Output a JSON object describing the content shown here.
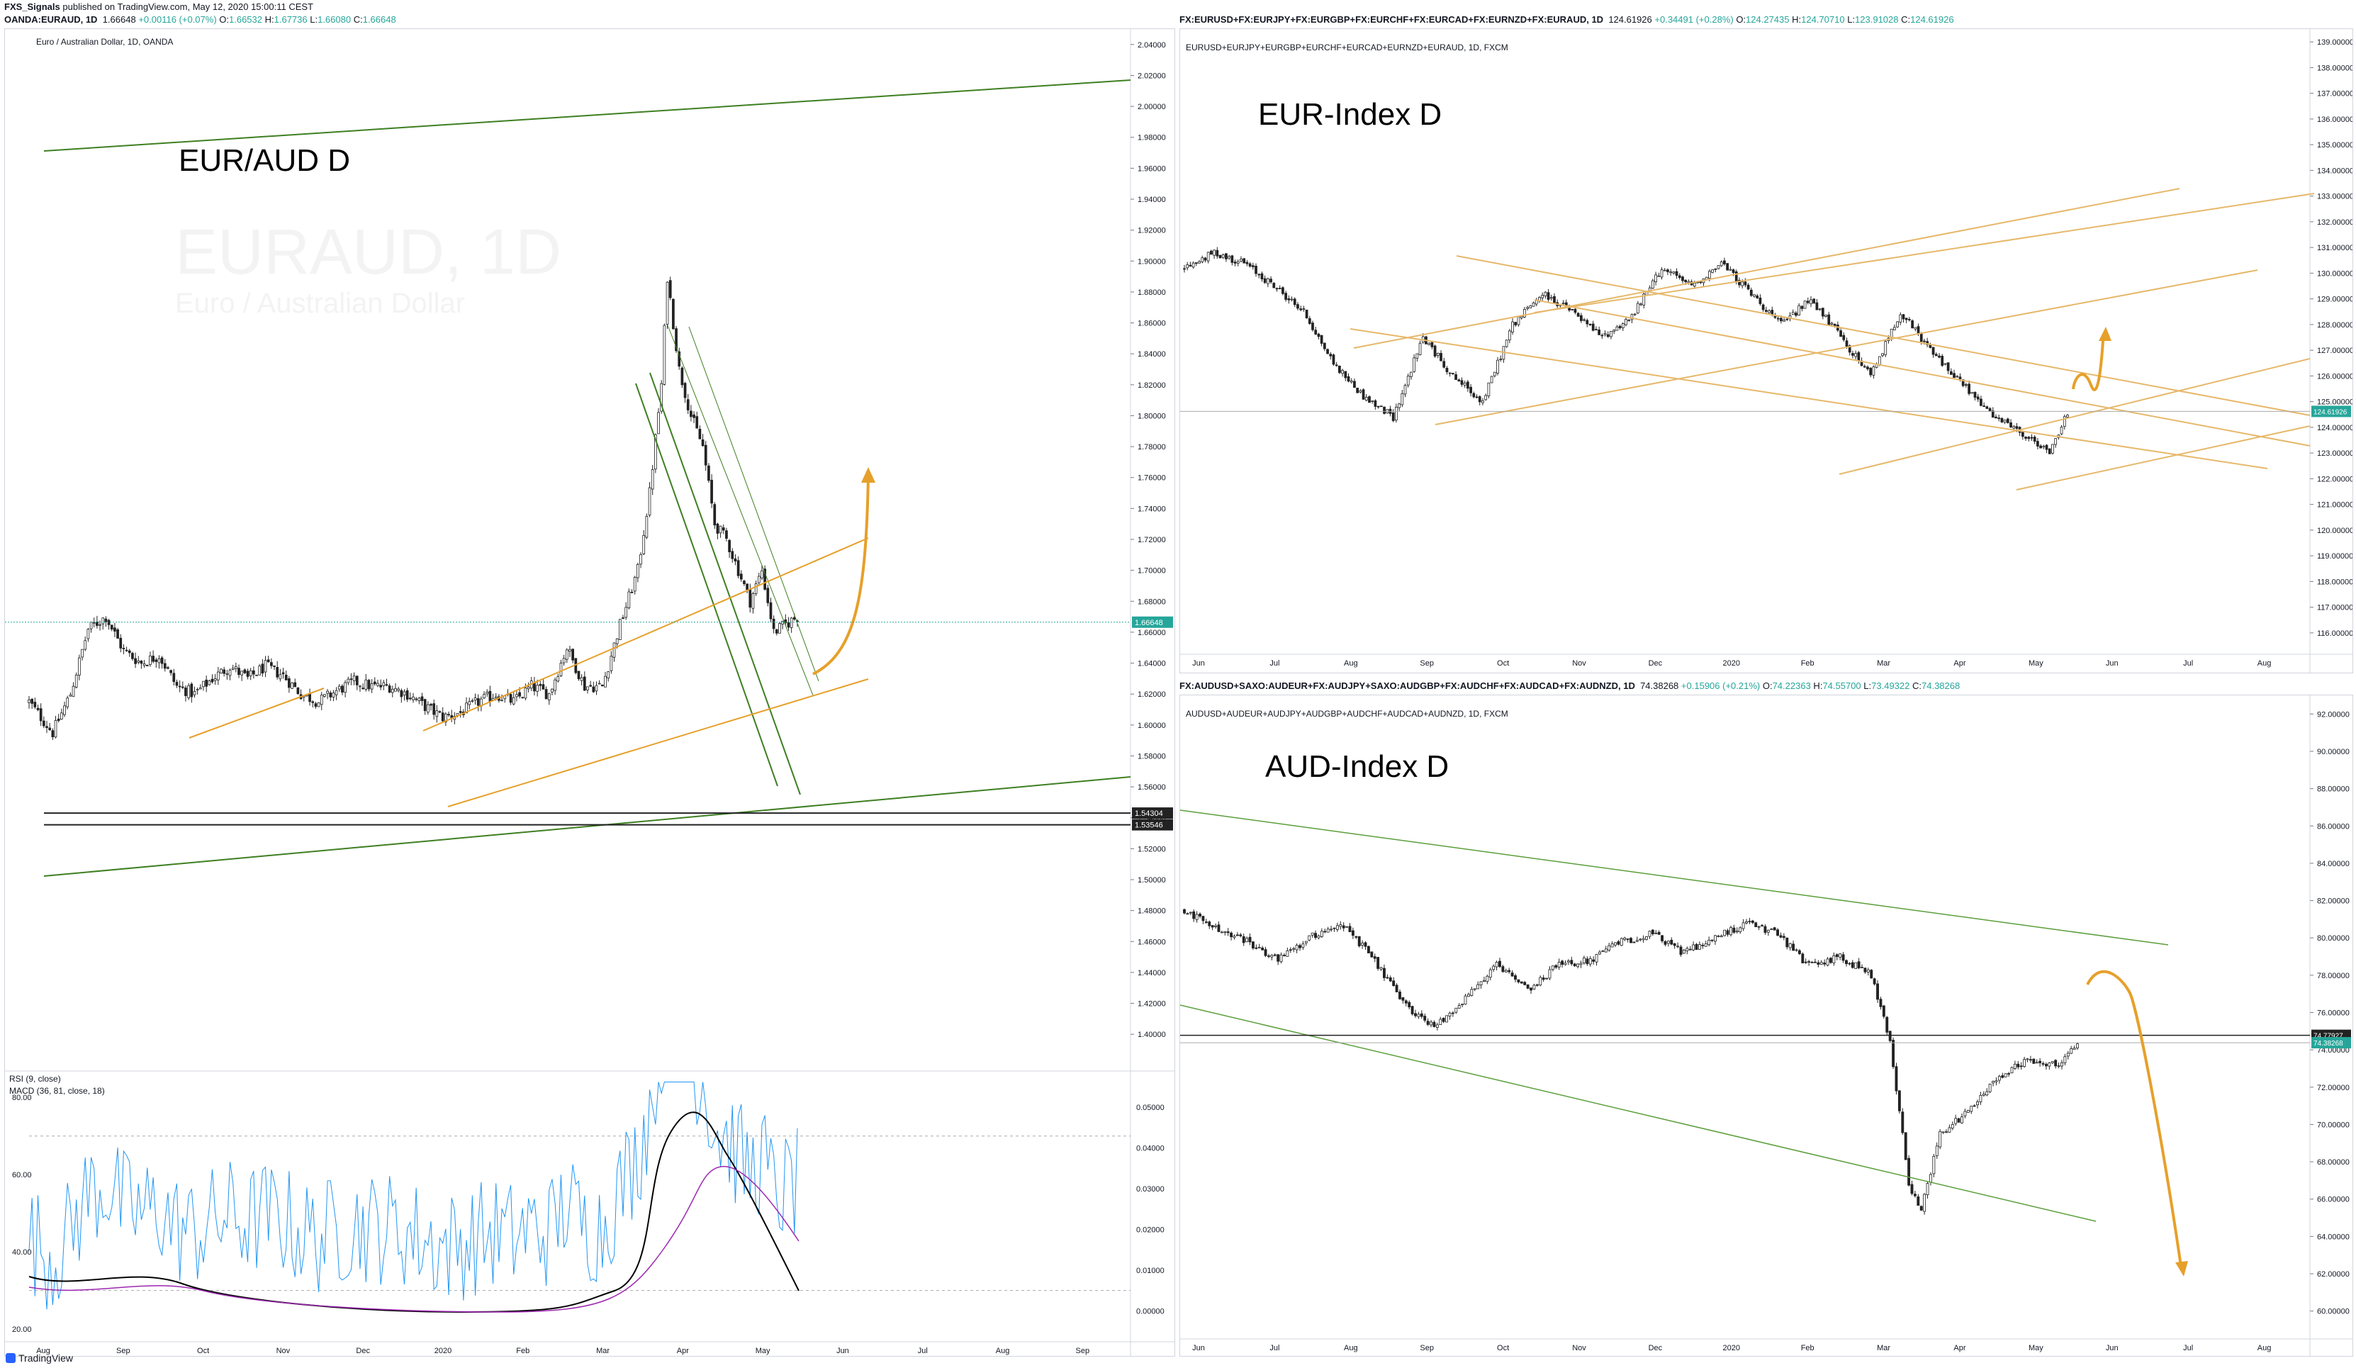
{
  "publisher": {
    "user": "FXS_Signals",
    "text": "published on TradingView.com, May 12, 2020 15:00:11 CEST"
  },
  "footer": {
    "brand": "TradingView"
  },
  "panes": {
    "euraud": {
      "symbol": "OANDA:EURAUD, 1D",
      "ohlc_first": "1.66648",
      "ohlc_change": "+0.00116 (+0.07%)",
      "O": "1.66532",
      "H": "1.67736",
      "L": "1.66080",
      "C": "1.66648",
      "legend": "Euro / Australian Dollar, 1D, OANDA",
      "watermark": "EURAUD, 1D",
      "watermark_sub": "Euro / Australian Dollar",
      "annotation": "EUR/AUD D",
      "price_badges": [
        "1.66648",
        "1.54304",
        "1.53546"
      ],
      "indicator_labels": [
        "RSI (9, close)",
        "MACD (36, 81, close, 18)"
      ]
    },
    "eurindex": {
      "symbol": "FX:EURUSD+FX:EURJPY+FX:EURGBP+FX:EURCHF+FX:EURCAD+FX:EURNZD+FX:EURAUD, 1D",
      "ohlc_first": "124.61926",
      "ohlc_change": "+0.34491 (+0.28%)",
      "O": "124.27435",
      "H": "124.70710",
      "L": "123.91028",
      "C": "124.61926",
      "legend": "EURUSD+EURJPY+EURGBP+EURCHF+EURCAD+EURNZD+EURAUD, 1D, FXCM",
      "annotation": "EUR-Index D",
      "price_badges": [
        "124.61926"
      ]
    },
    "audindex": {
      "symbol": "FX:AUDUSD+SAXO:AUDEUR+FX:AUDJPY+SAXO:AUDGBP+FX:AUDCHF+FX:AUDCAD+FX:AUDNZD, 1D",
      "ohlc_first": "74.38268",
      "ohlc_change": "+0.15906 (+0.21%)",
      "O": "74.22363",
      "H": "74.55700",
      "L": "73.49322",
      "C": "74.38268",
      "legend": "AUDUSD+AUDEUR+AUDJPY+AUDGBP+AUDCHF+AUDCAD+AUDNZD, 1D, FXCM",
      "annotation": "AUD-Index D",
      "price_badges": [
        "74.77927",
        "74.38268"
      ]
    }
  },
  "chart_data": [
    {
      "type": "candlestick",
      "title": "Euro / Australian Dollar, 1D, OANDA",
      "ylim": [
        1.39,
        2.05
      ],
      "y_ticks": [
        "2.04000",
        "2.02000",
        "2.00000",
        "1.98000",
        "1.96000",
        "1.94000",
        "1.92000",
        "1.90000",
        "1.88000",
        "1.86000",
        "1.84000",
        "1.82000",
        "1.80000",
        "1.78000",
        "1.76000",
        "1.74000",
        "1.72000",
        "1.70000",
        "1.68000",
        "1.66000",
        "1.64000",
        "1.62000",
        "1.60000",
        "1.58000",
        "1.56000",
        "1.54000",
        "1.52000",
        "1.50000",
        "1.48000",
        "1.46000",
        "1.44000",
        "1.42000",
        "1.40000"
      ],
      "x_ticks": [
        "Aug",
        "Sep",
        "Oct",
        "Nov",
        "Dec",
        "2020",
        "Feb",
        "Mar",
        "Apr",
        "May",
        "Jun",
        "Jul",
        "Aug",
        "Sep"
      ],
      "close_path": [
        [
          0,
          1.615
        ],
        [
          8,
          1.595
        ],
        [
          14,
          1.62
        ],
        [
          20,
          1.662
        ],
        [
          26,
          1.67
        ],
        [
          32,
          1.648
        ],
        [
          38,
          1.64
        ],
        [
          44,
          1.645
        ],
        [
          50,
          1.625
        ],
        [
          56,
          1.62
        ],
        [
          62,
          1.63
        ],
        [
          68,
          1.638
        ],
        [
          74,
          1.63
        ],
        [
          80,
          1.638
        ],
        [
          86,
          1.632
        ],
        [
          92,
          1.62
        ],
        [
          98,
          1.615
        ],
        [
          104,
          1.622
        ],
        [
          110,
          1.628
        ],
        [
          116,
          1.625
        ],
        [
          122,
          1.625
        ],
        [
          128,
          1.62
        ],
        [
          134,
          1.612
        ],
        [
          140,
          1.605
        ],
        [
          146,
          1.608
        ],
        [
          152,
          1.615
        ],
        [
          158,
          1.62
        ],
        [
          164,
          1.615
        ],
        [
          170,
          1.625
        ],
        [
          176,
          1.62
        ],
        [
          182,
          1.65
        ],
        [
          188,
          1.625
        ],
        [
          194,
          1.625
        ],
        [
          200,
          1.665
        ],
        [
          206,
          1.7
        ],
        [
          210,
          1.75
        ],
        [
          214,
          1.82
        ],
        [
          216,
          1.89
        ],
        [
          220,
          1.83
        ],
        [
          224,
          1.8
        ],
        [
          228,
          1.78
        ],
        [
          232,
          1.73
        ],
        [
          236,
          1.72
        ],
        [
          240,
          1.7
        ],
        [
          244,
          1.68
        ],
        [
          248,
          1.7
        ],
        [
          252,
          1.66
        ],
        [
          256,
          1.665
        ],
        [
          260,
          1.67
        ]
      ],
      "rsi_levels": [
        "80.00",
        "60.00",
        "40.00",
        "20.00"
      ],
      "macd_levels": [
        "0.05000",
        "0.04000",
        "0.03000",
        "0.02000",
        "0.01000",
        "0.00000"
      ],
      "price_lines": {
        "last": 1.66648,
        "s1": 1.54304,
        "s2": 1.53546
      }
    },
    {
      "type": "candlestick",
      "title": "EURUSD+EURJPY+EURGBP+EURCHF+EURCAD+EURNZD+EURAUD, 1D, FXCM",
      "ylim": [
        115.5,
        139.5
      ],
      "y_ticks": [
        "139.00000",
        "138.00000",
        "137.00000",
        "136.00000",
        "135.00000",
        "134.00000",
        "133.00000",
        "132.00000",
        "131.00000",
        "130.00000",
        "129.00000",
        "128.00000",
        "127.00000",
        "126.00000",
        "125.00000",
        "124.00000",
        "123.00000",
        "122.00000",
        "121.00000",
        "120.00000",
        "119.00000",
        "118.00000",
        "117.00000",
        "116.00000"
      ],
      "x_ticks": [
        "Jun",
        "Jul",
        "Aug",
        "Sep",
        "Oct",
        "Nov",
        "Dec",
        "2020",
        "Feb",
        "Mar",
        "Apr",
        "May",
        "Jun",
        "Jul",
        "Aug"
      ],
      "close_path": [
        [
          0,
          130.2
        ],
        [
          10,
          130.8
        ],
        [
          20,
          130.4
        ],
        [
          30,
          129.5
        ],
        [
          40,
          128.5
        ],
        [
          50,
          126.5
        ],
        [
          60,
          125.2
        ],
        [
          70,
          124.4
        ],
        [
          80,
          127.5
        ],
        [
          90,
          126.0
        ],
        [
          100,
          125.0
        ],
        [
          110,
          128.0
        ],
        [
          120,
          129.2
        ],
        [
          130,
          128.5
        ],
        [
          140,
          127.5
        ],
        [
          150,
          128.3
        ],
        [
          160,
          130.2
        ],
        [
          170,
          129.5
        ],
        [
          180,
          130.4
        ],
        [
          190,
          129.2
        ],
        [
          200,
          128.0
        ],
        [
          210,
          129.0
        ],
        [
          220,
          127.5
        ],
        [
          230,
          126.0
        ],
        [
          240,
          128.5
        ],
        [
          250,
          127.0
        ],
        [
          260,
          125.8
        ],
        [
          270,
          124.5
        ],
        [
          280,
          123.8
        ],
        [
          290,
          123.0
        ],
        [
          296,
          124.6
        ]
      ],
      "price_lines": {
        "last": 124.61926
      }
    },
    {
      "type": "candlestick",
      "title": "AUDUSD+AUDEUR+AUDJPY+AUDGBP+AUDCHF+AUDCAD+AUDNZD, 1D, FXCM",
      "ylim": [
        59,
        93
      ],
      "y_ticks": [
        "92.00000",
        "90.00000",
        "88.00000",
        "86.00000",
        "84.00000",
        "82.00000",
        "80.00000",
        "78.00000",
        "76.00000",
        "74.00000",
        "72.00000",
        "70.00000",
        "68.00000",
        "66.00000",
        "64.00000",
        "62.00000",
        "60.00000"
      ],
      "x_ticks": [
        "Jun",
        "Jul",
        "Aug",
        "Sep",
        "Oct",
        "Nov",
        "Dec",
        "2020",
        "Feb",
        "Mar",
        "Apr",
        "May",
        "Jun",
        "Jul",
        "Aug"
      ],
      "close_path": [
        [
          0,
          81.5
        ],
        [
          10,
          80.5
        ],
        [
          20,
          79.8
        ],
        [
          30,
          78.8
        ],
        [
          40,
          80.0
        ],
        [
          50,
          80.8
        ],
        [
          60,
          79.0
        ],
        [
          70,
          76.5
        ],
        [
          80,
          75.2
        ],
        [
          90,
          76.8
        ],
        [
          100,
          78.5
        ],
        [
          110,
          77.2
        ],
        [
          120,
          78.6
        ],
        [
          130,
          78.8
        ],
        [
          140,
          79.8
        ],
        [
          150,
          80.2
        ],
        [
          160,
          79.2
        ],
        [
          170,
          80.0
        ],
        [
          180,
          80.8
        ],
        [
          190,
          80.2
        ],
        [
          200,
          78.5
        ],
        [
          210,
          79.0
        ],
        [
          220,
          78.0
        ],
        [
          226,
          74.5
        ],
        [
          232,
          66.8
        ],
        [
          236,
          65.5
        ],
        [
          242,
          69.5
        ],
        [
          250,
          70.5
        ],
        [
          260,
          72.5
        ],
        [
          270,
          73.5
        ],
        [
          280,
          73.2
        ],
        [
          286,
          74.4
        ]
      ],
      "price_lines": {
        "last": 74.38268,
        "level": 74.77927
      }
    }
  ]
}
